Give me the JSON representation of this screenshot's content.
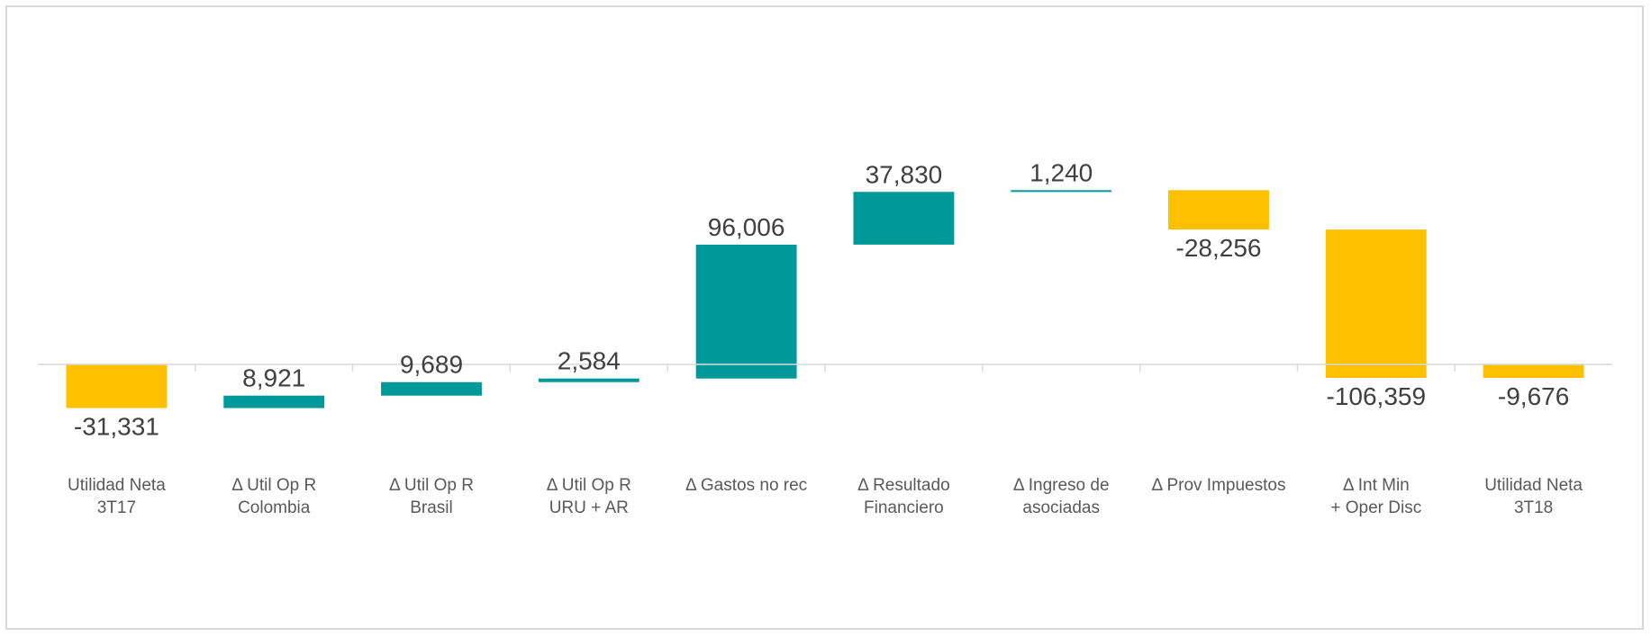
{
  "chart_data": {
    "type": "bar",
    "subtype": "waterfall",
    "title": "",
    "xlabel": "",
    "ylabel": "",
    "grid": false,
    "legend": "none",
    "colors": {
      "positive": "#009999",
      "negative": "#FFC000",
      "axis": "#d9d9d9",
      "label": "#404040",
      "category": "#595959"
    },
    "categories": [
      [
        "Utilidad Neta",
        "3T17"
      ],
      [
        "Δ Util Op R",
        "Colombia"
      ],
      [
        "Δ Util Op R",
        "Brasil"
      ],
      [
        "Δ Util Op R",
        "URU + AR"
      ],
      [
        "Δ Gastos no rec"
      ],
      [
        "Δ Resultado",
        "Financiero"
      ],
      [
        "Δ Ingreso de",
        "asociadas"
      ],
      [
        "Δ Prov Impuestos"
      ],
      [
        "Δ Int Min",
        "+ Oper Disc"
      ],
      [
        "Utilidad Neta",
        "3T18"
      ]
    ],
    "values": [
      -31331,
      8921,
      9689,
      2584,
      96006,
      37830,
      1240,
      -28256,
      -106359,
      -9676
    ],
    "labels": [
      "-31,331",
      "8,921",
      "9,689",
      "2,584",
      "96,006",
      "37,830",
      "1,240",
      "-28,256",
      "-106,359",
      "-9,676"
    ],
    "bar_kind": [
      "total",
      "delta",
      "delta",
      "delta",
      "delta",
      "delta",
      "delta",
      "delta",
      "delta",
      "total"
    ]
  }
}
